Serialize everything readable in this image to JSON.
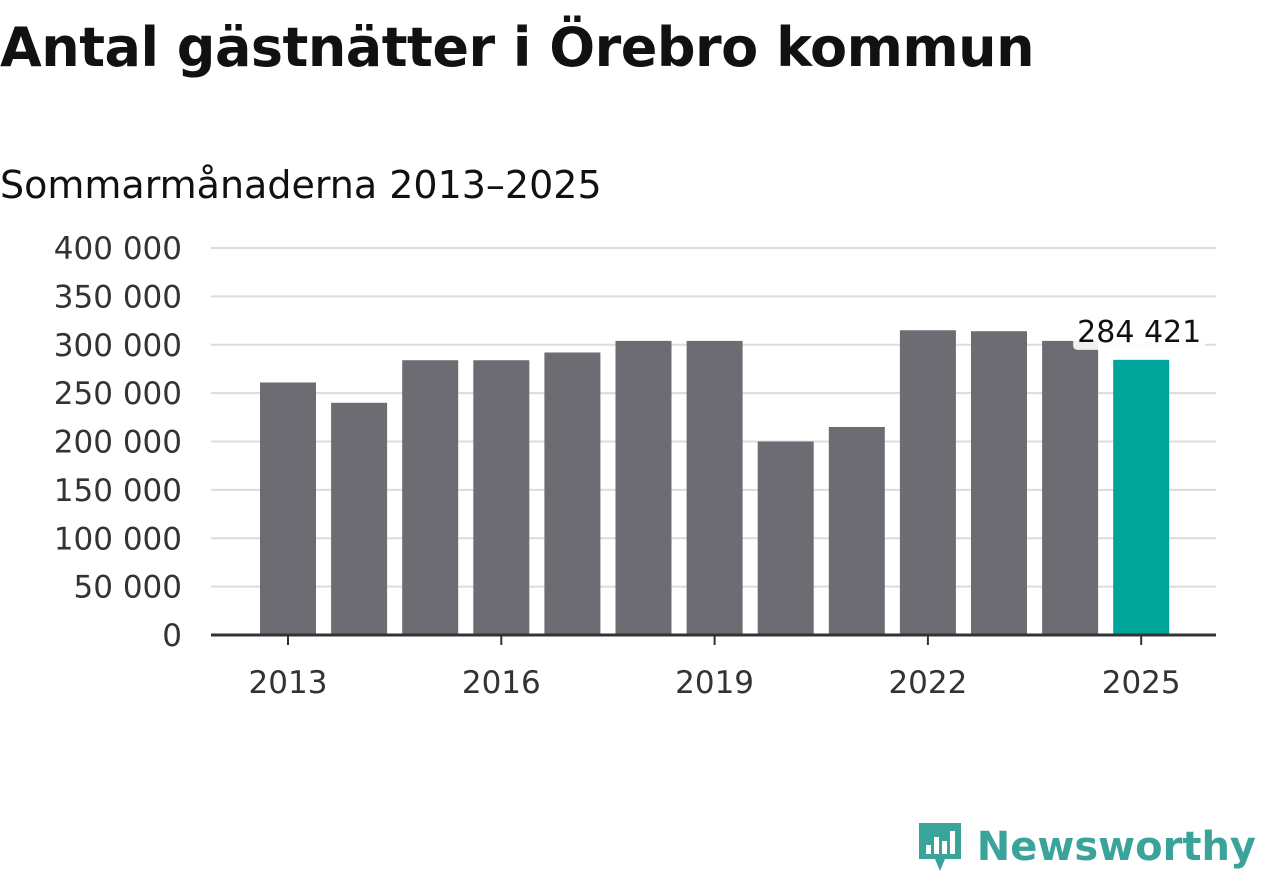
{
  "header": {
    "title": "Antal gästnätter i Örebro kommun",
    "subtitle": "Sommarmånaderna 2013–2025"
  },
  "brand": {
    "name": "Newsworthy",
    "logo_icon": "newsworthy-chart-icon",
    "color": "#3aa39a"
  },
  "colors": {
    "bar": "#6d6c72",
    "highlight": "#00a59a",
    "grid": "#dcdcdc",
    "axis": "#333333"
  },
  "chart_data": {
    "type": "bar",
    "title": "Antal gästnätter i Örebro kommun",
    "subtitle": "Sommarmånaderna 2013–2025",
    "xlabel": "",
    "ylabel": "",
    "categories": [
      "2013",
      "2014",
      "2015",
      "2016",
      "2017",
      "2018",
      "2019",
      "2020",
      "2021",
      "2022",
      "2023",
      "2024",
      "2025"
    ],
    "values": [
      261000,
      240000,
      284000,
      284000,
      292000,
      304000,
      304000,
      200000,
      215000,
      315000,
      314000,
      304000,
      284421
    ],
    "highlight_index": 12,
    "ylim": [
      0,
      400000
    ],
    "yticks": [
      0,
      50000,
      100000,
      150000,
      200000,
      250000,
      300000,
      350000,
      400000
    ],
    "ytick_labels": [
      "0",
      "50 000",
      "100 000",
      "150 000",
      "200 000",
      "250 000",
      "300 000",
      "350 000",
      "400 000"
    ],
    "xtick_labels": [
      "2013",
      "2016",
      "2019",
      "2022",
      "2025"
    ],
    "annotation": {
      "category": "2025",
      "label": "284 421"
    },
    "grid": true,
    "legend": "none"
  }
}
